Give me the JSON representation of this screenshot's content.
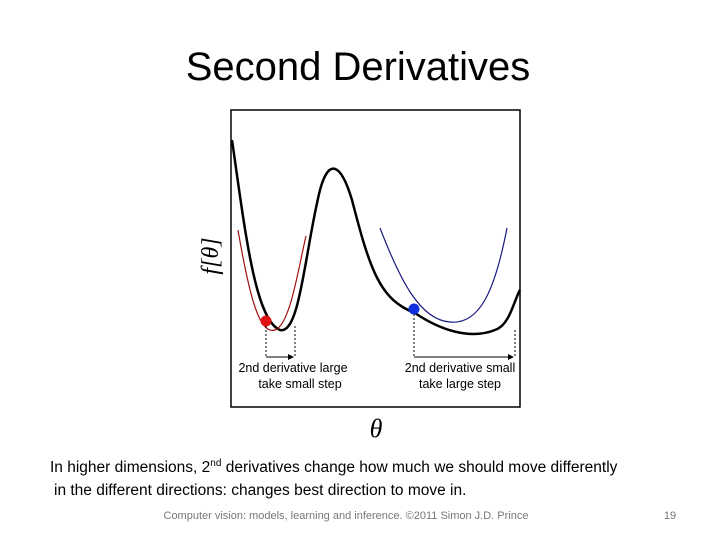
{
  "slide": {
    "title": "Second Derivatives",
    "figure": {
      "y_label": "f[θ]",
      "x_label": "θ",
      "left_note": [
        "2nd derivative large",
        "take small step"
      ],
      "right_note": [
        "2nd derivative small",
        "take large step"
      ]
    },
    "body": {
      "line1": [
        "In higher dimensions, 2",
        "nd",
        " derivatives change how much we should move differently"
      ],
      "line2": "in the different directions:  changes best direction to move in."
    },
    "footer": "Computer vision: models, learning and inference.  ©2011 Simon J.D. Prince",
    "page_number": "19"
  }
}
